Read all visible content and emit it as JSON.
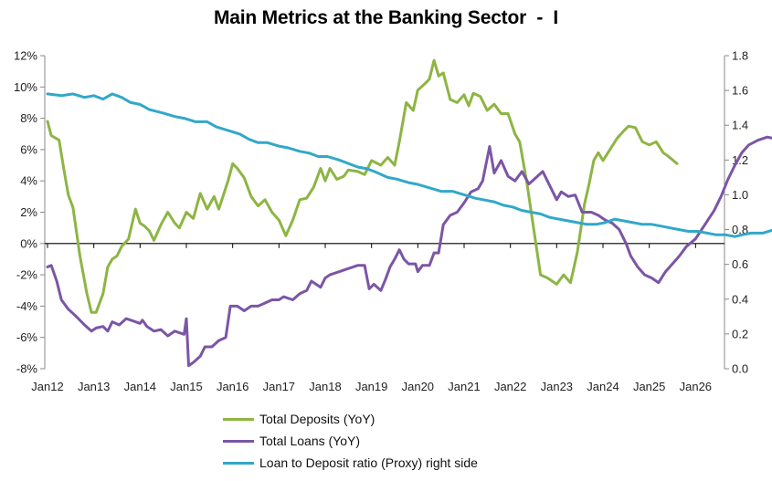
{
  "chart_data": {
    "type": "line",
    "title": "Main Metrics at the Banking Sector  -  I",
    "xlabel": "",
    "ylabel_left": "",
    "ylabel_right": "",
    "x_categories": [
      "Jan12",
      "Jan13",
      "Jan14",
      "Jan15",
      "Jan16",
      "Jan17",
      "Jan18",
      "Jan19",
      "Jan20",
      "Jan21",
      "Jan22",
      "Jan23",
      "Jan24",
      "Jan25",
      "Jan26"
    ],
    "left_axis": {
      "min": -8,
      "max": 12,
      "step": 2,
      "tick_labels": [
        "-8%",
        "-6%",
        "-4%",
        "-2%",
        "0%",
        "2%",
        "4%",
        "6%",
        "8%",
        "10%",
        "12%"
      ]
    },
    "right_axis": {
      "min": 0.0,
      "max": 1.8,
      "step": 0.2,
      "tick_labels": [
        "0.0",
        "0.2",
        "0.4",
        "0.6",
        "0.8",
        "1.0",
        "1.2",
        "1.4",
        "1.6",
        "1.8"
      ]
    },
    "series": [
      {
        "name": "Total Deposits (YoY)",
        "axis": "left",
        "color": "#8db543",
        "points": [
          [
            0,
            7.8
          ],
          [
            0.08,
            6.9
          ],
          [
            0.25,
            6.6
          ],
          [
            0.35,
            4.8
          ],
          [
            0.45,
            3.1
          ],
          [
            0.55,
            2.3
          ],
          [
            0.7,
            -0.8
          ],
          [
            0.85,
            -3.2
          ],
          [
            0.95,
            -4.4
          ],
          [
            1.05,
            -4.4
          ],
          [
            1.2,
            -3.2
          ],
          [
            1.3,
            -1.5
          ],
          [
            1.4,
            -1.0
          ],
          [
            1.5,
            -0.8
          ],
          [
            1.6,
            -0.2
          ],
          [
            1.75,
            0.3
          ],
          [
            1.9,
            2.2
          ],
          [
            2.0,
            1.3
          ],
          [
            2.1,
            1.1
          ],
          [
            2.2,
            0.8
          ],
          [
            2.3,
            0.2
          ],
          [
            2.45,
            1.2
          ],
          [
            2.6,
            2.0
          ],
          [
            2.75,
            1.3
          ],
          [
            2.85,
            1.0
          ],
          [
            3.0,
            2.0
          ],
          [
            3.15,
            1.6
          ],
          [
            3.3,
            3.2
          ],
          [
            3.45,
            2.2
          ],
          [
            3.6,
            3.0
          ],
          [
            3.7,
            2.2
          ],
          [
            3.9,
            4.0
          ],
          [
            4.0,
            5.1
          ],
          [
            4.1,
            4.8
          ],
          [
            4.25,
            4.2
          ],
          [
            4.4,
            3.0
          ],
          [
            4.55,
            2.4
          ],
          [
            4.7,
            2.8
          ],
          [
            4.85,
            2.0
          ],
          [
            5.0,
            1.5
          ],
          [
            5.15,
            0.5
          ],
          [
            5.3,
            1.5
          ],
          [
            5.45,
            2.8
          ],
          [
            5.6,
            2.9
          ],
          [
            5.75,
            3.6
          ],
          [
            5.9,
            4.8
          ],
          [
            6.0,
            4.0
          ],
          [
            6.1,
            4.8
          ],
          [
            6.25,
            4.1
          ],
          [
            6.4,
            4.3
          ],
          [
            6.5,
            4.7
          ],
          [
            6.7,
            4.6
          ],
          [
            6.85,
            4.4
          ],
          [
            7.0,
            5.3
          ],
          [
            7.2,
            5.0
          ],
          [
            7.35,
            5.5
          ],
          [
            7.5,
            5.0
          ],
          [
            7.6,
            6.5
          ],
          [
            7.75,
            9.0
          ],
          [
            7.9,
            8.5
          ],
          [
            8.0,
            9.8
          ],
          [
            8.15,
            10.2
          ],
          [
            8.25,
            10.5
          ],
          [
            8.35,
            11.7
          ],
          [
            8.45,
            10.7
          ],
          [
            8.55,
            10.9
          ],
          [
            8.7,
            9.2
          ],
          [
            8.85,
            9.0
          ],
          [
            9.0,
            9.5
          ],
          [
            9.1,
            8.8
          ],
          [
            9.2,
            9.6
          ],
          [
            9.35,
            9.4
          ],
          [
            9.5,
            8.5
          ],
          [
            9.65,
            8.9
          ],
          [
            9.8,
            8.3
          ],
          [
            9.95,
            8.3
          ],
          [
            10.1,
            7.0
          ],
          [
            10.2,
            6.5
          ],
          [
            10.35,
            4.0
          ],
          [
            10.5,
            1.0
          ],
          [
            10.65,
            -2.0
          ],
          [
            10.8,
            -2.2
          ],
          [
            11.0,
            -2.6
          ],
          [
            11.15,
            -2.0
          ],
          [
            11.3,
            -2.5
          ],
          [
            11.45,
            -0.5
          ],
          [
            11.6,
            2.5
          ],
          [
            11.7,
            3.8
          ],
          [
            11.8,
            5.3
          ],
          [
            11.9,
            5.8
          ],
          [
            12.0,
            5.3
          ],
          [
            12.15,
            6.0
          ],
          [
            12.3,
            6.7
          ],
          [
            12.45,
            7.2
          ],
          [
            12.55,
            7.5
          ],
          [
            12.7,
            7.4
          ],
          [
            12.85,
            6.5
          ],
          [
            13.0,
            6.3
          ],
          [
            13.15,
            6.5
          ],
          [
            13.3,
            5.8
          ],
          [
            13.4,
            5.6
          ],
          [
            13.6,
            5.1
          ]
        ]
      },
      {
        "name": "Total Loans (YoY)",
        "axis": "left",
        "color": "#7b55a6",
        "points": [
          [
            0,
            -1.5
          ],
          [
            0.08,
            -1.4
          ],
          [
            0.2,
            -2.4
          ],
          [
            0.3,
            -3.6
          ],
          [
            0.45,
            -4.2
          ],
          [
            0.6,
            -4.6
          ],
          [
            0.8,
            -5.2
          ],
          [
            0.95,
            -5.6
          ],
          [
            1.05,
            -5.4
          ],
          [
            1.2,
            -5.3
          ],
          [
            1.3,
            -5.6
          ],
          [
            1.4,
            -5.0
          ],
          [
            1.55,
            -5.2
          ],
          [
            1.7,
            -4.8
          ],
          [
            1.8,
            -4.9
          ],
          [
            2.0,
            -5.1
          ],
          [
            2.05,
            -4.9
          ],
          [
            2.15,
            -5.3
          ],
          [
            2.3,
            -5.6
          ],
          [
            2.45,
            -5.5
          ],
          [
            2.6,
            -5.9
          ],
          [
            2.75,
            -5.6
          ],
          [
            2.95,
            -5.8
          ],
          [
            3.0,
            -4.8
          ],
          [
            3.05,
            -7.8
          ],
          [
            3.15,
            -7.6
          ],
          [
            3.3,
            -7.2
          ],
          [
            3.4,
            -6.6
          ],
          [
            3.55,
            -6.6
          ],
          [
            3.7,
            -6.2
          ],
          [
            3.85,
            -6.0
          ],
          [
            3.95,
            -4.0
          ],
          [
            4.1,
            -4.0
          ],
          [
            4.25,
            -4.3
          ],
          [
            4.4,
            -4.0
          ],
          [
            4.55,
            -4.0
          ],
          [
            4.7,
            -3.8
          ],
          [
            4.85,
            -3.6
          ],
          [
            5.0,
            -3.6
          ],
          [
            5.1,
            -3.4
          ],
          [
            5.3,
            -3.6
          ],
          [
            5.45,
            -3.2
          ],
          [
            5.6,
            -3.0
          ],
          [
            5.7,
            -2.4
          ],
          [
            5.8,
            -2.6
          ],
          [
            5.9,
            -2.8
          ],
          [
            6.0,
            -2.2
          ],
          [
            6.1,
            -2.0
          ],
          [
            6.3,
            -1.8
          ],
          [
            6.5,
            -1.6
          ],
          [
            6.7,
            -1.4
          ],
          [
            6.85,
            -1.4
          ],
          [
            6.95,
            -2.9
          ],
          [
            7.05,
            -2.6
          ],
          [
            7.2,
            -3.0
          ],
          [
            7.3,
            -2.3
          ],
          [
            7.4,
            -1.5
          ],
          [
            7.5,
            -1.0
          ],
          [
            7.6,
            -0.4
          ],
          [
            7.7,
            -1.0
          ],
          [
            7.8,
            -1.3
          ],
          [
            7.95,
            -1.3
          ],
          [
            8.0,
            -1.8
          ],
          [
            8.1,
            -1.4
          ],
          [
            8.25,
            -1.4
          ],
          [
            8.35,
            -0.6
          ],
          [
            8.45,
            -0.6
          ],
          [
            8.55,
            1.2
          ],
          [
            8.7,
            1.8
          ],
          [
            8.85,
            2.0
          ],
          [
            9.0,
            2.6
          ],
          [
            9.15,
            3.3
          ],
          [
            9.3,
            3.5
          ],
          [
            9.4,
            4.0
          ],
          [
            9.55,
            6.2
          ],
          [
            9.65,
            4.5
          ],
          [
            9.8,
            5.3
          ],
          [
            9.95,
            4.3
          ],
          [
            10.1,
            4.0
          ],
          [
            10.25,
            4.6
          ],
          [
            10.4,
            3.8
          ],
          [
            10.55,
            4.2
          ],
          [
            10.7,
            4.6
          ],
          [
            10.85,
            3.7
          ],
          [
            11.0,
            2.8
          ],
          [
            11.1,
            3.3
          ],
          [
            11.25,
            3.0
          ],
          [
            11.4,
            3.1
          ],
          [
            11.55,
            2.0
          ],
          [
            11.75,
            2.0
          ],
          [
            11.9,
            1.8
          ],
          [
            12.05,
            1.5
          ],
          [
            12.2,
            1.3
          ],
          [
            12.35,
            0.9
          ],
          [
            12.5,
            0.0
          ],
          [
            12.6,
            -0.8
          ],
          [
            12.75,
            -1.5
          ],
          [
            12.9,
            -2.0
          ],
          [
            13.05,
            -2.2
          ],
          [
            13.2,
            -2.5
          ],
          [
            13.35,
            -1.8
          ],
          [
            13.5,
            -1.3
          ],
          [
            13.65,
            -0.8
          ],
          [
            13.8,
            -0.2
          ],
          [
            14.0,
            0.3
          ],
          [
            14.2,
            1.2
          ],
          [
            14.4,
            2.1
          ],
          [
            14.55,
            3.0
          ],
          [
            14.7,
            4.1
          ],
          [
            14.85,
            5.0
          ],
          [
            15.0,
            5.8
          ],
          [
            15.15,
            6.3
          ],
          [
            15.35,
            6.6
          ],
          [
            15.55,
            6.8
          ],
          [
            15.7,
            6.7
          ]
        ]
      },
      {
        "name": "Loan to Deposit ratio (Proxy) right side",
        "axis": "right",
        "color": "#31a8c8",
        "points": [
          [
            0,
            1.58
          ],
          [
            0.3,
            1.57
          ],
          [
            0.55,
            1.58
          ],
          [
            0.8,
            1.56
          ],
          [
            1.0,
            1.57
          ],
          [
            1.2,
            1.55
          ],
          [
            1.4,
            1.58
          ],
          [
            1.6,
            1.56
          ],
          [
            1.8,
            1.53
          ],
          [
            2.0,
            1.52
          ],
          [
            2.2,
            1.49
          ],
          [
            2.5,
            1.47
          ],
          [
            2.75,
            1.45
          ],
          [
            2.95,
            1.44
          ],
          [
            3.2,
            1.42
          ],
          [
            3.45,
            1.42
          ],
          [
            3.65,
            1.39
          ],
          [
            3.9,
            1.37
          ],
          [
            4.15,
            1.35
          ],
          [
            4.35,
            1.32
          ],
          [
            4.55,
            1.3
          ],
          [
            4.75,
            1.3
          ],
          [
            5.0,
            1.28
          ],
          [
            5.2,
            1.27
          ],
          [
            5.45,
            1.25
          ],
          [
            5.65,
            1.24
          ],
          [
            5.85,
            1.22
          ],
          [
            6.05,
            1.22
          ],
          [
            6.3,
            1.2
          ],
          [
            6.5,
            1.18
          ],
          [
            6.7,
            1.16
          ],
          [
            6.9,
            1.15
          ],
          [
            7.1,
            1.13
          ],
          [
            7.35,
            1.1
          ],
          [
            7.55,
            1.09
          ],
          [
            7.8,
            1.07
          ],
          [
            8.0,
            1.06
          ],
          [
            8.25,
            1.04
          ],
          [
            8.5,
            1.02
          ],
          [
            8.75,
            1.02
          ],
          [
            9.0,
            1.0
          ],
          [
            9.25,
            0.98
          ],
          [
            9.45,
            0.97
          ],
          [
            9.65,
            0.96
          ],
          [
            9.85,
            0.94
          ],
          [
            10.05,
            0.93
          ],
          [
            10.25,
            0.91
          ],
          [
            10.45,
            0.9
          ],
          [
            10.65,
            0.89
          ],
          [
            10.85,
            0.87
          ],
          [
            11.05,
            0.86
          ],
          [
            11.25,
            0.85
          ],
          [
            11.45,
            0.84
          ],
          [
            11.65,
            0.83
          ],
          [
            11.85,
            0.83
          ],
          [
            12.05,
            0.84
          ],
          [
            12.25,
            0.86
          ],
          [
            12.45,
            0.85
          ],
          [
            12.65,
            0.84
          ],
          [
            12.85,
            0.83
          ],
          [
            13.05,
            0.83
          ],
          [
            13.25,
            0.82
          ],
          [
            13.45,
            0.81
          ],
          [
            13.65,
            0.8
          ],
          [
            13.85,
            0.79
          ],
          [
            14.05,
            0.79
          ],
          [
            14.25,
            0.78
          ],
          [
            14.45,
            0.77
          ],
          [
            14.65,
            0.77
          ],
          [
            14.85,
            0.76
          ],
          [
            15.0,
            0.77
          ],
          [
            15.2,
            0.78
          ],
          [
            15.45,
            0.78
          ],
          [
            15.7,
            0.8
          ]
        ]
      }
    ],
    "legend_position": "bottom",
    "grid": false
  }
}
